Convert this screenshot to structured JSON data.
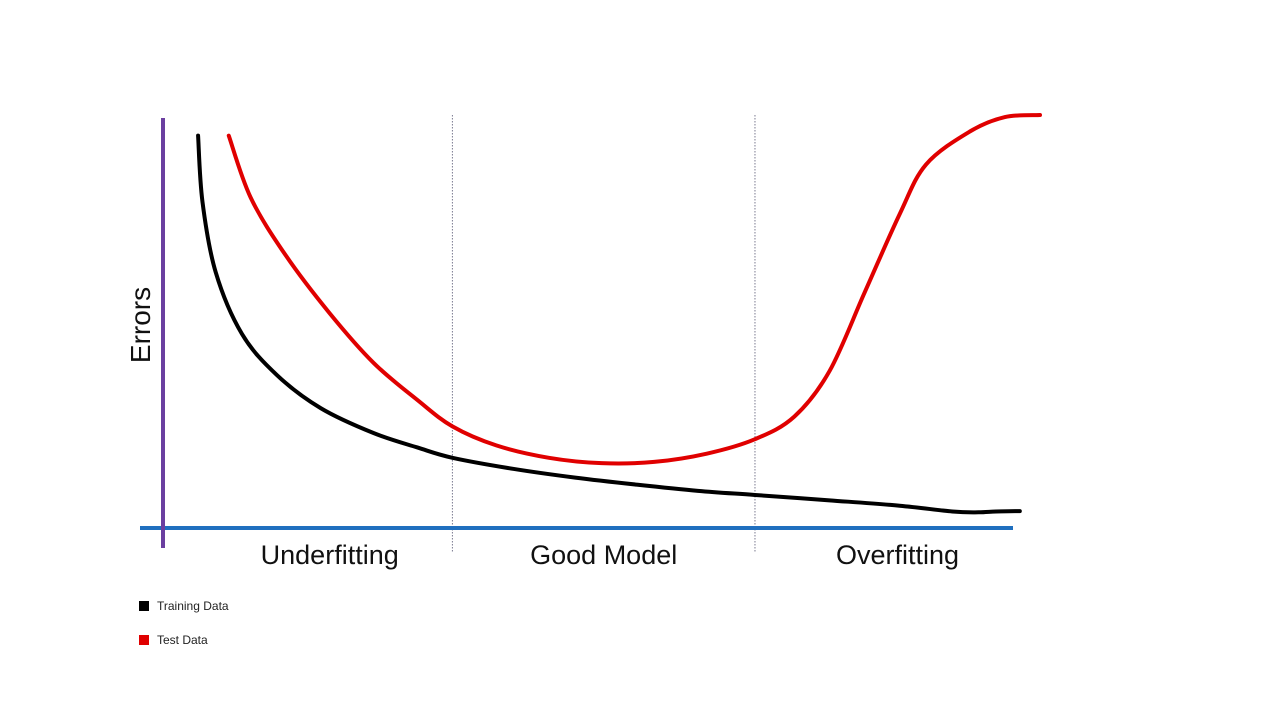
{
  "chart_data": {
    "type": "line",
    "title": "",
    "ylabel": "Errors",
    "xlabel": "",
    "grid": false,
    "xlim": [
      0,
      100
    ],
    "ylim": [
      0,
      100
    ],
    "regions": [
      {
        "label": "Underfitting",
        "x_start": 0,
        "x_end": 33
      },
      {
        "label": "Good Model",
        "x_start": 33,
        "x_end": 67.5
      },
      {
        "label": "Overfitting",
        "x_start": 67.5,
        "x_end": 100
      }
    ],
    "legend_position": "bottom-left",
    "series": [
      {
        "name": "Training Data",
        "color": "#000000",
        "x": [
          4,
          4.5,
          6,
          9,
          13,
          18,
          24,
          29,
          33,
          40,
          47,
          54,
          61,
          67.5,
          76,
          84,
          90,
          93,
          95,
          97.7
        ],
        "y": [
          95,
          79,
          62,
          47,
          37,
          29,
          23,
          19.5,
          17,
          14.3,
          12.2,
          10.5,
          9,
          8,
          6.7,
          5.4,
          4,
          3.8,
          4,
          4.1
        ]
      },
      {
        "name": "Test Data",
        "color": "#e00000",
        "x": [
          7.5,
          10,
          14,
          19,
          24,
          29,
          33,
          38,
          44,
          50,
          56,
          62,
          67.5,
          72,
          76,
          80,
          84,
          87,
          92,
          96,
          100
        ],
        "y": [
          95,
          80,
          66,
          52,
          40,
          31,
          24.6,
          20,
          17,
          15.7,
          16,
          18,
          21.5,
          27,
          38,
          57,
          76,
          88,
          96,
          99.5,
          100
        ]
      }
    ]
  }
}
